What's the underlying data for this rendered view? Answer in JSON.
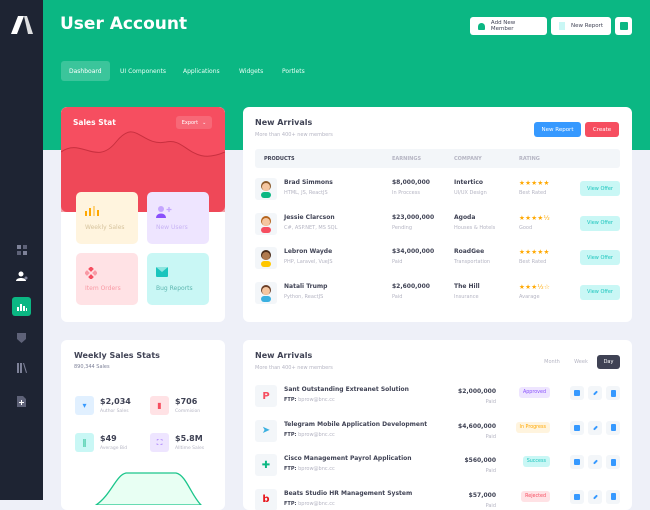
{
  "colors": {
    "brand": "#0bb783",
    "sidebar": "#1e2433",
    "primary": "#3699ff",
    "danger": "#f64e60",
    "warning": "#ffa800",
    "info": "#1bc5bd"
  },
  "sidebar": {
    "items": [
      {
        "icon": "layout-icon"
      },
      {
        "icon": "users-icon"
      },
      {
        "icon": "chart-bar-icon",
        "active": true
      },
      {
        "icon": "shield-icon"
      },
      {
        "icon": "library-icon"
      },
      {
        "icon": "file-plus-icon"
      }
    ]
  },
  "header": {
    "title": "User Account",
    "add_member": "Add New Member",
    "new_report": "New Report"
  },
  "nav": [
    {
      "label": "Dashboard",
      "active": true
    },
    {
      "label": "UI Components"
    },
    {
      "label": "Applications"
    },
    {
      "label": "Widgets"
    },
    {
      "label": "Portlets"
    }
  ],
  "sales_stat": {
    "title": "Sales Stat",
    "export": "Export",
    "tiles": [
      "Weekly Sales",
      "New Users",
      "Item Orders",
      "Bug Reports"
    ]
  },
  "arrivals": {
    "title": "New Arrivals",
    "subtitle": "More than 400+ new members",
    "new_report": "New Report",
    "create": "Create",
    "columns": [
      "PRODUCTS",
      "EARNINGS",
      "COMPANY",
      "RATING"
    ],
    "rows": [
      {
        "name": "Brad Simmons",
        "skills": "HTML, JS, ReactJS",
        "earnings": "$8,000,000",
        "status": "In Proccess",
        "company": "Intertico",
        "field": "UI/UX Design",
        "stars": "★★★★★",
        "rating": "Best Rated",
        "action": "View Offer"
      },
      {
        "name": "Jessie Clarcson",
        "skills": "C#, ASP.NET, MS SQL",
        "earnings": "$23,000,000",
        "status": "Pending",
        "company": "Agoda",
        "field": "Houses & Hotels",
        "stars": "★★★★½",
        "rating": "Good",
        "action": "View Offer"
      },
      {
        "name": "Lebron Wayde",
        "skills": "PHP, Laravel, VueJS",
        "earnings": "$34,000,000",
        "status": "Paid",
        "company": "RoadGee",
        "field": "Transportation",
        "stars": "★★★★★",
        "rating": "Best Rated",
        "action": "View Offer"
      },
      {
        "name": "Natali Trump",
        "skills": "Python,  ReactJS",
        "earnings": "$2,600,000",
        "status": "Paid",
        "company": "The Hill",
        "field": "Insurance",
        "stars": "★★★½☆",
        "rating": "Avarage",
        "action": "View Offer"
      }
    ]
  },
  "weekly": {
    "title": "Weekly Sales Stats",
    "subtitle": "890,344 Sales",
    "stats": [
      {
        "value": "$2,034",
        "label": "Author Sales"
      },
      {
        "value": "$706",
        "label": "Commision"
      },
      {
        "value": "$49",
        "label": "Average Bid"
      },
      {
        "value": "$5.8M",
        "label": "Alltime Sales"
      }
    ]
  },
  "arrivals2": {
    "title": "New Arrivals",
    "subtitle": "More than 400+ new members",
    "tabs": [
      "Month",
      "Week",
      "Day"
    ],
    "active_tab": "Day",
    "ftp_label": "FTP:",
    "rows": [
      {
        "name": "Sant Outstanding Extreanet Solution",
        "ftp": "bprow@bnc.cc",
        "amount": "$2,000,000",
        "status": "Paid",
        "badge": "Approved"
      },
      {
        "name": "Telegram Mobile Application Development",
        "ftp": "bprow@bnc.cc",
        "amount": "$4,600,000",
        "status": "Paid",
        "badge": "In Progress"
      },
      {
        "name": "Cisco Management Payrol Application",
        "ftp": "bprow@bnc.cc",
        "amount": "$560,000",
        "status": "Paid",
        "badge": "Success"
      },
      {
        "name": "Beats Studio HR Management System",
        "ftp": "bprow@bnc.cc",
        "amount": "$57,000",
        "status": "Paid",
        "badge": "Rejected"
      }
    ]
  }
}
